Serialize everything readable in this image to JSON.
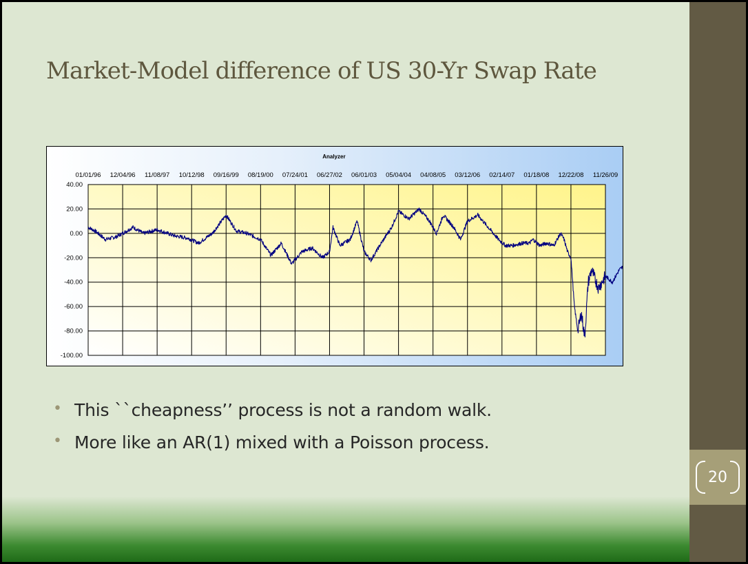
{
  "slide": {
    "title": "Market-Model difference of US 30-Yr Swap Rate",
    "page_number": "20",
    "bullets": [
      "This ``cheapness’’ process is not a random walk.",
      "More like an AR(1) mixed with a Poisson process."
    ],
    "colors": {
      "background": "#dde7d2",
      "sidebar": "#625a44",
      "title": "#5e573e",
      "footer_green": "#1f6b18"
    }
  },
  "chart_data": {
    "type": "line",
    "title": "Analyzer \u0004",
    "xlabel": "",
    "ylabel": "",
    "x_tick_labels": [
      "01/01/96",
      "12/04/96",
      "11/08/97",
      "10/12/98",
      "09/16/99",
      "08/19/00",
      "07/24/01",
      "06/27/02",
      "06/01/03",
      "05/04/04",
      "04/08/05",
      "03/12/06",
      "02/14/07",
      "01/18/08",
      "12/22/08",
      "11/26/09"
    ],
    "x_axis_position": "top",
    "y_tick_labels": [
      "40.00",
      "20.00",
      "0.00",
      "-20.00",
      "-40.00",
      "-60.00",
      "-80.00",
      "-100.00"
    ],
    "ylim": [
      -100,
      40
    ],
    "grid": true,
    "legend": "none",
    "series_color": "#000080",
    "series": [
      {
        "x": [
          0,
          0.2,
          0.5,
          0.8,
          1.0,
          1.3,
          1.6,
          2.0,
          2.5,
          2.9,
          3.2,
          3.6,
          4.0,
          4.3,
          4.6,
          5.0,
          5.3,
          5.6,
          5.9,
          6.2,
          6.5,
          6.8,
          7.0,
          7.1,
          7.3,
          7.6,
          7.8,
          8.0,
          8.2,
          8.5,
          8.8,
          9.0,
          9.3,
          9.6,
          9.9,
          10.1,
          10.3,
          10.6,
          10.8,
          11.0,
          11.3,
          11.6,
          11.9,
          12.1,
          12.3,
          12.6,
          12.8,
          12.9,
          13.1,
          13.3,
          13.5,
          13.7,
          13.8,
          13.9,
          14.0,
          14.1,
          14.2,
          14.3,
          14.4,
          14.5,
          14.6,
          14.8,
          15.0,
          15.2,
          15.4,
          15.6,
          15.8,
          15.9,
          16.0
        ],
        "y": [
          5,
          2,
          -5,
          -3,
          0,
          5,
          0,
          3,
          -2,
          -4,
          -8,
          0,
          15,
          2,
          0,
          -5,
          -18,
          -8,
          -25,
          -15,
          -12,
          -20,
          -15,
          5,
          -10,
          -5,
          10,
          -15,
          -22,
          -8,
          5,
          18,
          12,
          20,
          10,
          0,
          15,
          5,
          -5,
          10,
          15,
          5,
          -5,
          -10,
          -10,
          -8,
          -8,
          -5,
          -10,
          -8,
          -10,
          0,
          -5,
          -15,
          -20,
          -60,
          -80,
          -65,
          -85,
          -40,
          -30,
          -45,
          -35,
          -40,
          -30,
          -25,
          -20,
          -15,
          -10
        ]
      }
    ]
  }
}
